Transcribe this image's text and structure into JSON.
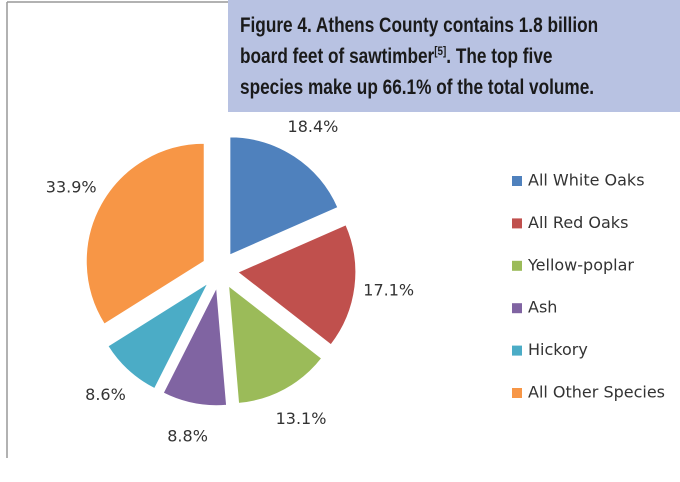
{
  "chart_data": {
    "type": "pie",
    "title": [
      "Figure 4. Athens County contains 1.8 billion",
      "board feet of sawtimber",
      "[5]",
      ". The top five",
      "species make up 66.1% of the total volume."
    ],
    "categories": [
      "All White Oaks",
      "All Red Oaks",
      "Yellow-poplar",
      "Ash",
      "Hickory",
      "All Other Species"
    ],
    "values": [
      18.4,
      17.1,
      13.1,
      8.8,
      8.6,
      33.9
    ],
    "value_labels": [
      "18.4%",
      "17.1%",
      "13.1%",
      "8.8%",
      "8.6%",
      "33.9%"
    ],
    "colors": [
      "#4f81bd",
      "#c0504d",
      "#9bbb59",
      "#8064a2",
      "#4bacc6",
      "#f79646"
    ],
    "legend": "right"
  }
}
